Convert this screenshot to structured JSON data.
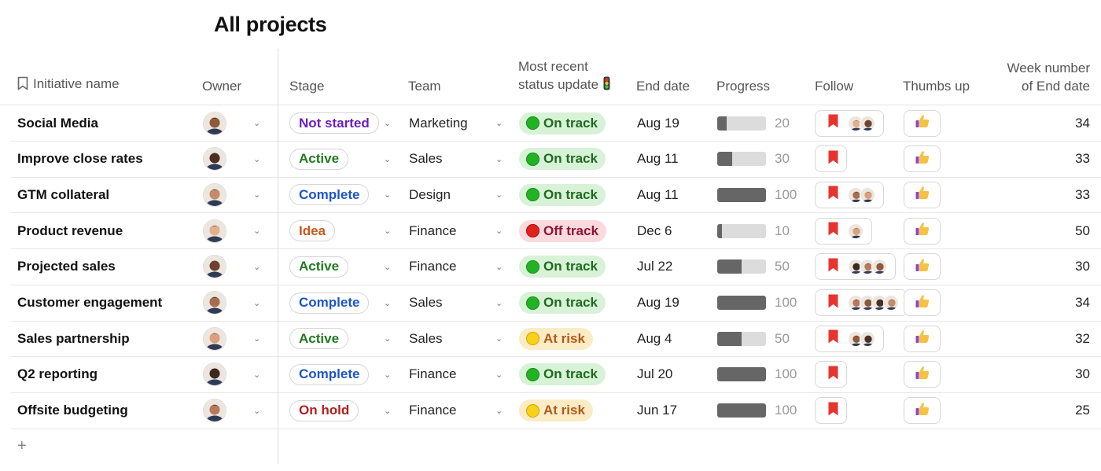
{
  "page": {
    "title": "All projects"
  },
  "columns": {
    "name": "Initiative name",
    "owner": "Owner",
    "stage": "Stage",
    "team": "Team",
    "status_line1": "Most recent",
    "status_line2": "status update",
    "end_date": "End date",
    "progress": "Progress",
    "follow": "Follow",
    "thumbs": "Thumbs up",
    "week_line1": "Week number",
    "week_line2": "of End date"
  },
  "colors": {
    "stage_not_started": "#6b1fbf",
    "stage_active": "#1f7a1f",
    "stage_complete": "#1d55c4",
    "stage_idea": "#c4581d",
    "stage_on_hold": "#b31f1f",
    "status_on_track_bg": "#d8f2d8",
    "status_on_track_fg": "#1e6b1e",
    "status_off_track_bg": "#fbd9dc",
    "status_off_track_fg": "#8a1538",
    "status_at_risk_bg": "#fbecc6",
    "status_at_risk_fg": "#b3591a",
    "bookmark": "#e8342f"
  },
  "rows": [
    {
      "name": "Social Media",
      "stage": "Not started",
      "stage_key": "not_started",
      "team": "Marketing",
      "status": "On track",
      "status_key": "on_track",
      "end": "Aug 19",
      "progress": 20,
      "progress_label": "20",
      "followers": 2,
      "week": "34"
    },
    {
      "name": "Improve close rates",
      "stage": "Active",
      "stage_key": "active",
      "team": "Sales",
      "status": "On track",
      "status_key": "on_track",
      "end": "Aug 11",
      "progress": 30,
      "progress_label": "30",
      "followers": 0,
      "week": "33"
    },
    {
      "name": "GTM collateral",
      "stage": "Complete",
      "stage_key": "complete",
      "team": "Design",
      "status": "On track",
      "status_key": "on_track",
      "end": "Aug 11",
      "progress": 100,
      "progress_label": "100",
      "followers": 2,
      "week": "33"
    },
    {
      "name": "Product revenue",
      "stage": "Idea",
      "stage_key": "idea",
      "team": "Finance",
      "status": "Off track",
      "status_key": "off_track",
      "end": "Dec 6",
      "progress": 10,
      "progress_label": "10",
      "followers": 1,
      "week": "50"
    },
    {
      "name": "Projected sales",
      "stage": "Active",
      "stage_key": "active",
      "team": "Finance",
      "status": "On track",
      "status_key": "on_track",
      "end": "Jul 22",
      "progress": 50,
      "progress_label": "50",
      "followers": 3,
      "week": "30"
    },
    {
      "name": "Customer engagement",
      "stage": "Complete",
      "stage_key": "complete",
      "team": "Sales",
      "status": "On track",
      "status_key": "on_track",
      "end": "Aug 19",
      "progress": 100,
      "progress_label": "100",
      "followers": 4,
      "week": "34"
    },
    {
      "name": "Sales partnership",
      "stage": "Active",
      "stage_key": "active",
      "team": "Sales",
      "status": "At risk",
      "status_key": "at_risk",
      "end": "Aug 4",
      "progress": 50,
      "progress_label": "50",
      "followers": 2,
      "week": "32"
    },
    {
      "name": "Q2 reporting",
      "stage": "Complete",
      "stage_key": "complete",
      "team": "Finance",
      "status": "On track",
      "status_key": "on_track",
      "end": "Jul 20",
      "progress": 100,
      "progress_label": "100",
      "followers": 0,
      "week": "30"
    },
    {
      "name": "Offsite budgeting",
      "stage": "On hold",
      "stage_key": "on_hold",
      "team": "Finance",
      "status": "At risk",
      "status_key": "at_risk",
      "end": "Jun 17",
      "progress": 100,
      "progress_label": "100",
      "followers": 0,
      "week": "25"
    }
  ],
  "footer": {
    "add_label": "+"
  }
}
